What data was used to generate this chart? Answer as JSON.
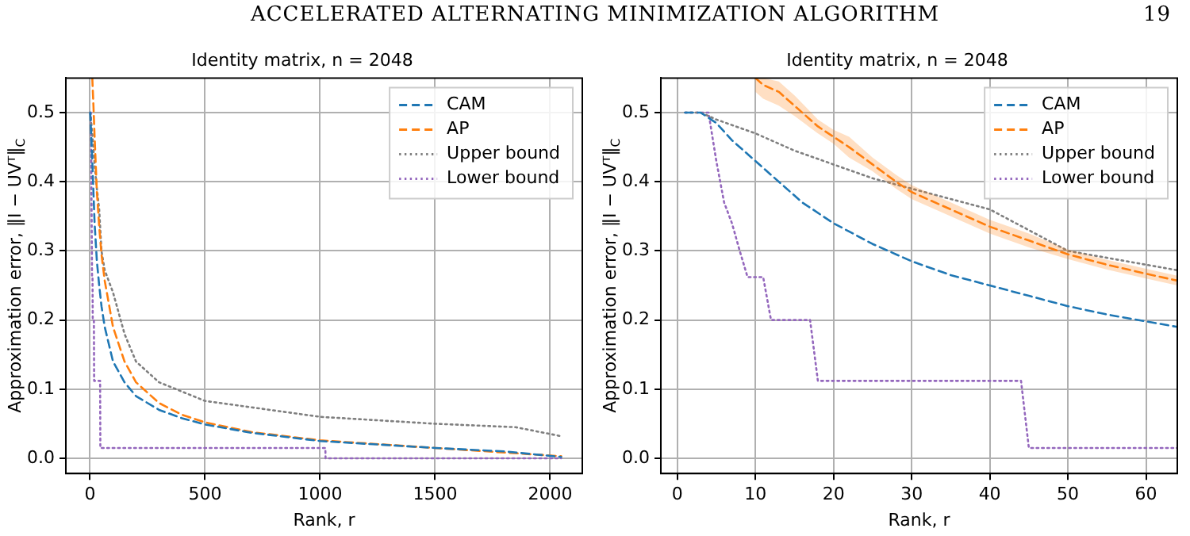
{
  "chart_data": [
    {
      "type": "line",
      "title": "Identity matrix, n = 2048",
      "xlabel": "Rank, r",
      "ylabel": "Approximation error, ‖I − UVᵀ‖$_{C}$",
      "annotations": [
        "ACCELERATED ALTERNATING MINIMIZATION ALGORITHM",
        "19"
      ],
      "xlim": [
        -105,
        2140
      ],
      "ylim": [
        -0.022,
        0.55
      ],
      "xticks": [
        0,
        500,
        1000,
        1500,
        2000
      ],
      "yticks": [
        {
          "value": 0,
          "label": "0.0"
        },
        {
          "value": 0.1,
          "label": "0.1"
        },
        {
          "value": 0.2,
          "label": "0.2"
        },
        {
          "value": 0.3,
          "label": "0.3"
        },
        {
          "value": 0.4,
          "label": "0.4"
        },
        {
          "value": 0.5,
          "label": "0.5"
        }
      ],
      "grid": true,
      "legend": "top right",
      "marker": "none",
      "series": [
        {
          "name": "CAM",
          "color": "#1f77b4",
          "line_style": "dashed",
          "x": [
            1,
            10,
            20,
            30,
            40,
            50,
            64,
            100,
            150,
            200,
            300,
            400,
            500,
            700,
            1000,
            1300,
            1500,
            1800,
            2048
          ],
          "values": [
            0.5,
            0.43,
            0.34,
            0.285,
            0.25,
            0.22,
            0.19,
            0.14,
            0.11,
            0.09,
            0.07,
            0.058,
            0.049,
            0.037,
            0.025,
            0.019,
            0.015,
            0.01,
            0.002
          ]
        },
        {
          "name": "AP",
          "color": "#ff7f0e",
          "line_style": "dashed",
          "x": [
            10,
            15,
            20,
            30,
            40,
            50,
            64,
            100,
            150,
            200,
            300,
            400,
            500,
            700,
            1000,
            1500,
            2048
          ],
          "values": [
            0.55,
            0.51,
            0.465,
            0.385,
            0.335,
            0.295,
            0.257,
            0.19,
            0.14,
            0.11,
            0.08,
            0.063,
            0.052,
            0.038,
            0.026,
            0.015,
            0.003
          ]
        },
        {
          "name": "Upper bound",
          "color": "#7f7f7f",
          "line_style": "dotted",
          "x": [
            1,
            10,
            20,
            30,
            40,
            50,
            64,
            100,
            150,
            200,
            300,
            500,
            1000,
            1500,
            1850,
            2048
          ],
          "values": [
            0.5,
            0.47,
            0.425,
            0.39,
            0.36,
            0.3,
            0.272,
            0.24,
            0.18,
            0.14,
            0.11,
            0.083,
            0.06,
            0.05,
            0.045,
            0.032
          ]
        },
        {
          "name": "Lower bound",
          "color": "#9467bd",
          "line_style": "dotted",
          "x": [
            1,
            4,
            9,
            11,
            12,
            17,
            18,
            44,
            45,
            1023,
            1024,
            2048
          ],
          "values": [
            0.5,
            0.5,
            0.262,
            0.262,
            0.2,
            0.2,
            0.112,
            0.112,
            0.015,
            0.015,
            0,
            0
          ]
        }
      ]
    },
    {
      "type": "line",
      "title": "Identity matrix, n = 2048",
      "xlabel": "Rank, r",
      "ylabel": "Approximation error, ‖I − UVᵀ‖$_{C}$",
      "xlim": [
        -2.1,
        64
      ],
      "ylim": [
        -0.022,
        0.55
      ],
      "xticks": [
        0,
        10,
        20,
        30,
        40,
        50,
        60
      ],
      "yticks": [
        {
          "value": 0,
          "label": "0.0"
        },
        {
          "value": 0.1,
          "label": "0.1"
        },
        {
          "value": 0.2,
          "label": "0.2"
        },
        {
          "value": 0.3,
          "label": "0.3"
        },
        {
          "value": 0.4,
          "label": "0.4"
        },
        {
          "value": 0.5,
          "label": "0.5"
        }
      ],
      "grid": true,
      "legend": "top right",
      "marker": "none",
      "series": [
        {
          "name": "CAM",
          "color": "#1f77b4",
          "line_style": "dashed",
          "x": [
            1,
            3,
            5,
            7,
            10,
            13,
            16,
            20,
            25,
            30,
            35,
            40,
            45,
            50,
            55,
            60,
            64
          ],
          "values": [
            0.5,
            0.5,
            0.485,
            0.46,
            0.43,
            0.4,
            0.37,
            0.34,
            0.31,
            0.285,
            0.265,
            0.25,
            0.235,
            0.22,
            0.208,
            0.198,
            0.19
          ]
        },
        {
          "name": "AP",
          "color": "#ff7f0e",
          "line_style": "dashed",
          "x": [
            10,
            11,
            13,
            15,
            18,
            20,
            22,
            25,
            28,
            30,
            35,
            40,
            45,
            50,
            55,
            60,
            64
          ],
          "values": [
            0.55,
            0.54,
            0.53,
            0.51,
            0.48,
            0.465,
            0.45,
            0.425,
            0.4,
            0.385,
            0.36,
            0.335,
            0.315,
            0.295,
            0.28,
            0.267,
            0.257
          ],
          "lower": [
            0.53,
            0.52,
            0.51,
            0.495,
            0.47,
            0.455,
            0.435,
            0.415,
            0.39,
            0.375,
            0.35,
            0.325,
            0.305,
            0.288,
            0.273,
            0.26,
            0.25
          ],
          "upper": [
            0.55,
            0.55,
            0.545,
            0.525,
            0.49,
            0.475,
            0.465,
            0.435,
            0.41,
            0.395,
            0.37,
            0.345,
            0.325,
            0.302,
            0.287,
            0.274,
            0.264
          ]
        },
        {
          "name": "Upper bound",
          "color": "#7f7f7f",
          "line_style": "dotted",
          "x": [
            1,
            3,
            5,
            10,
            15,
            20,
            25,
            30,
            35,
            40,
            45,
            50,
            55,
            60,
            64
          ],
          "values": [
            0.5,
            0.5,
            0.49,
            0.47,
            0.445,
            0.425,
            0.405,
            0.39,
            0.375,
            0.36,
            0.33,
            0.3,
            0.29,
            0.28,
            0.272
          ]
        },
        {
          "name": "Lower bound",
          "color": "#9467bd",
          "line_style": "dotted",
          "x": [
            1,
            4,
            5,
            6,
            7,
            8,
            9,
            11,
            12,
            17,
            18,
            44,
            45,
            64
          ],
          "values": [
            0.5,
            0.5,
            0.43,
            0.37,
            0.34,
            0.3,
            0.262,
            0.262,
            0.2,
            0.2,
            0.112,
            0.112,
            0.015,
            0.015
          ]
        }
      ]
    }
  ]
}
